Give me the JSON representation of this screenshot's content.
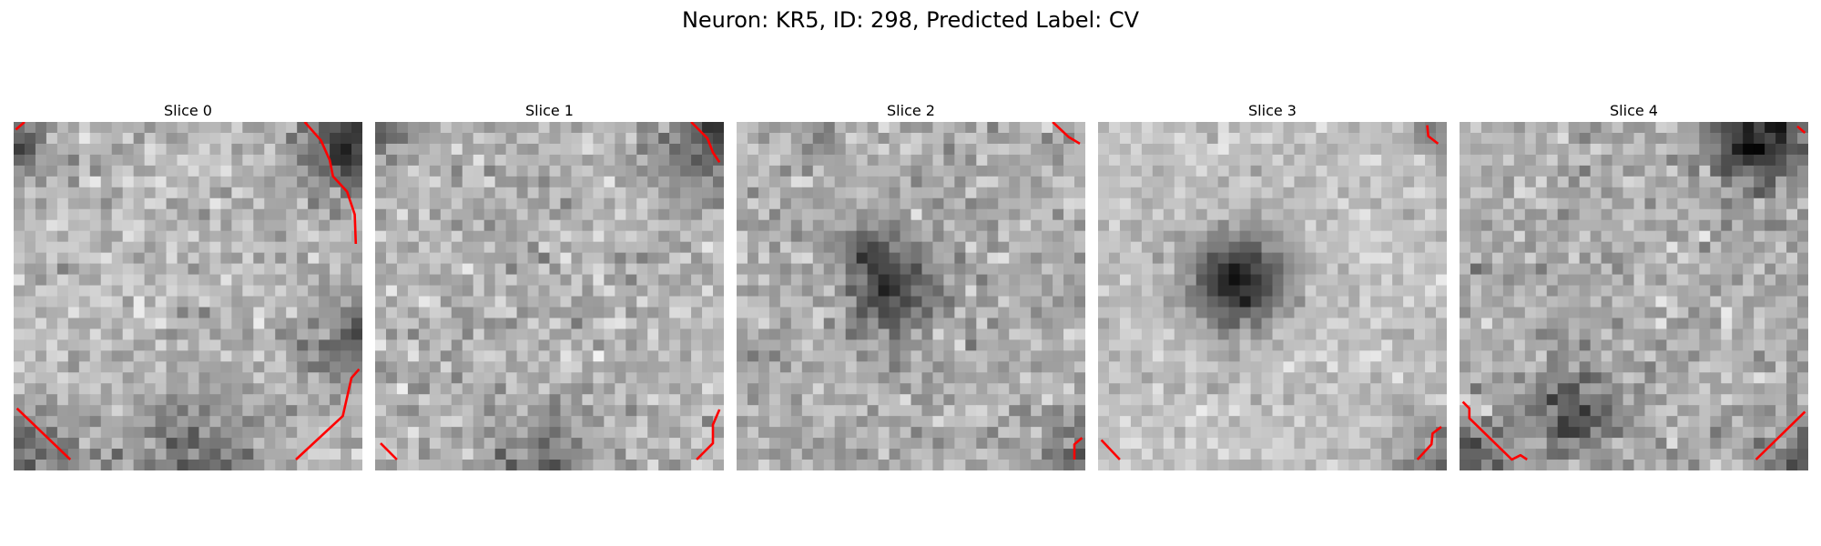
{
  "figure": {
    "title": "Neuron: KR5, ID: 298, Predicted Label: CV"
  },
  "slices": [
    {
      "title": "Slice 0"
    },
    {
      "title": "Slice 1"
    },
    {
      "title": "Slice 2"
    },
    {
      "title": "Slice 3"
    },
    {
      "title": "Slice 4"
    }
  ],
  "colors": {
    "contour": "#ff0000",
    "cmap": "gray"
  }
}
